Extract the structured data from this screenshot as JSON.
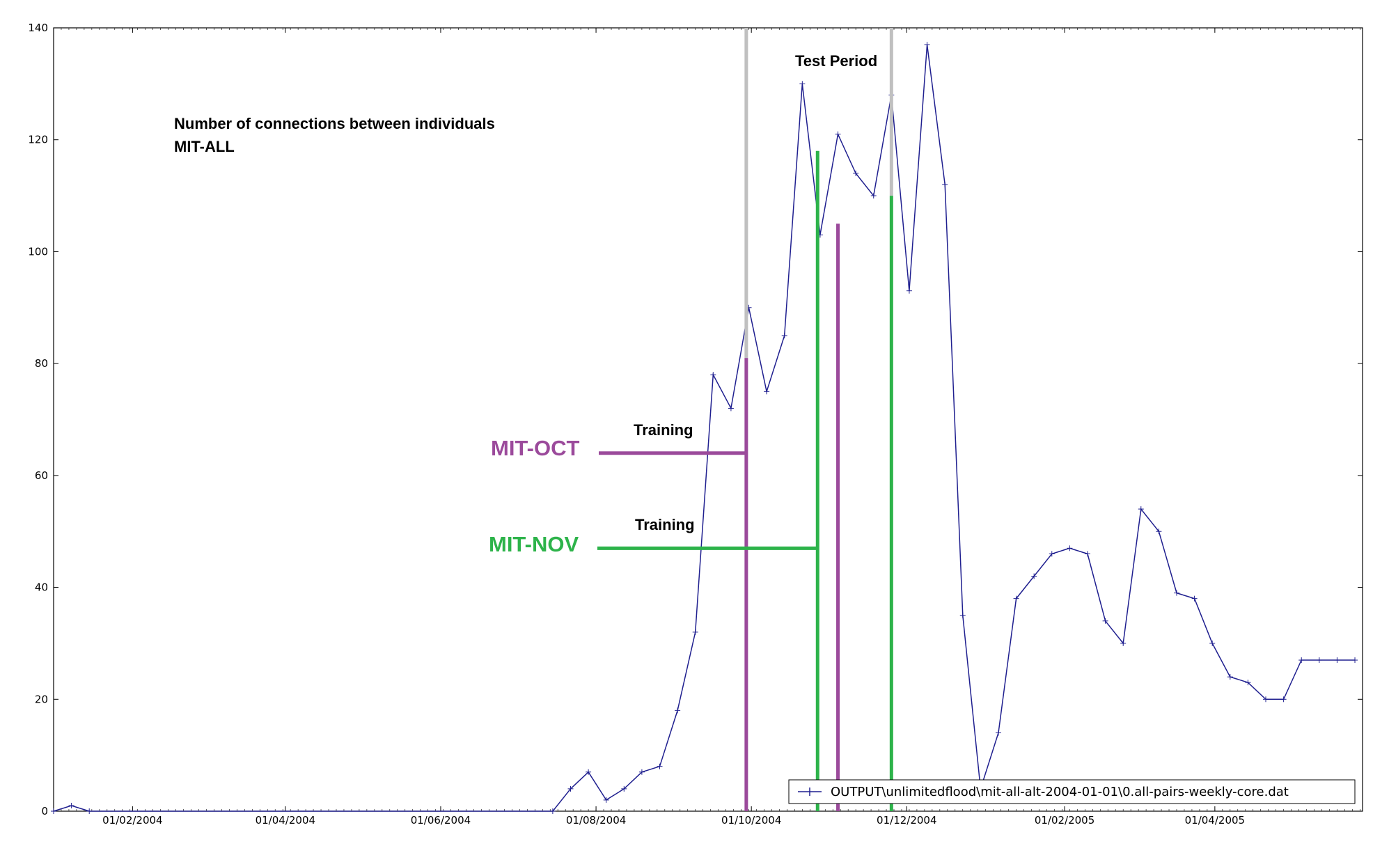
{
  "chart_data": {
    "type": "line",
    "title": "",
    "xlabel": "",
    "ylabel": "",
    "ylim": [
      0,
      140
    ],
    "xlim": [
      "2004-01-01",
      "2005-05-29"
    ],
    "grid": false,
    "legend_position": "bottom-right",
    "y_ticks": [
      "0",
      "20",
      "40",
      "60",
      "80",
      "100",
      "120",
      "140"
    ],
    "x_ticks": [
      {
        "date": "2004-02-01",
        "label": "01/02/2004"
      },
      {
        "date": "2004-04-01",
        "label": "01/04/2004"
      },
      {
        "date": "2004-06-01",
        "label": "01/06/2004"
      },
      {
        "date": "2004-08-01",
        "label": "01/08/2004"
      },
      {
        "date": "2004-10-01",
        "label": "01/10/2004"
      },
      {
        "date": "2004-12-01",
        "label": "01/12/2004"
      },
      {
        "date": "2005-02-01",
        "label": "01/02/2005"
      },
      {
        "date": "2005-04-01",
        "label": "01/04/2005"
      }
    ],
    "series": [
      {
        "name": "OUTPUT\\unlimitedflood\\mit-all-alt-2004-01-01\\0.all-pairs-weekly-core.dat",
        "color": "#1f1f8f",
        "x": [
          "2004-01-01",
          "2004-01-08",
          "2004-01-15",
          "2004-07-15",
          "2004-07-22",
          "2004-07-29",
          "2004-08-05",
          "2004-08-12",
          "2004-08-19",
          "2004-08-26",
          "2004-09-02",
          "2004-09-09",
          "2004-09-16",
          "2004-09-23",
          "2004-09-30",
          "2004-10-07",
          "2004-10-14",
          "2004-10-21",
          "2004-10-28",
          "2004-11-04",
          "2004-11-11",
          "2004-11-18",
          "2004-11-25",
          "2004-12-02",
          "2004-12-09",
          "2004-12-16",
          "2004-12-23",
          "2004-12-30",
          "2005-01-06",
          "2005-01-13",
          "2005-01-20",
          "2005-01-27",
          "2005-02-03",
          "2005-02-10",
          "2005-02-17",
          "2005-02-24",
          "2005-03-03",
          "2005-03-10",
          "2005-03-17",
          "2005-03-24",
          "2005-03-31",
          "2005-04-07",
          "2005-04-14",
          "2005-04-21",
          "2005-04-28",
          "2005-05-05",
          "2005-05-12",
          "2005-05-19",
          "2005-05-26"
        ],
        "y": [
          0,
          1,
          0,
          0,
          4,
          7,
          2,
          4,
          7,
          8,
          18,
          32,
          78,
          72,
          90,
          75,
          85,
          130,
          103,
          121,
          114,
          110,
          128,
          93,
          137,
          112,
          35,
          4,
          14,
          38,
          42,
          46,
          47,
          46,
          34,
          30,
          54,
          50,
          39,
          38,
          30,
          24,
          23,
          20,
          20,
          27,
          27,
          27,
          27
        ]
      }
    ],
    "annotations": {
      "title_line1": "Number of connections between individuals",
      "title_line2": "MIT-ALL",
      "test_period": "Test Period",
      "training_oct": "Training",
      "training_nov": "Training",
      "mit_oct": "MIT-OCT",
      "mit_nov": "MIT-NOV"
    },
    "markers": {
      "test_start": "2004-09-29",
      "test_end": "2004-11-25",
      "oct_end": "2004-09-29",
      "oct_end2": "2004-11-04",
      "nov_end": "2004-10-27",
      "nov_end2": "2004-11-25",
      "oct_training_y": 64,
      "nov_training_y": 47,
      "oct_top": 81,
      "oct_top2": 105,
      "nov_top": 118,
      "nov_top2": 110
    },
    "colors": {
      "series": "#1f1f8f",
      "test_period": "#c0c0c0",
      "mit_oct": "#9b4a9b",
      "mit_nov": "#2db34a"
    }
  }
}
